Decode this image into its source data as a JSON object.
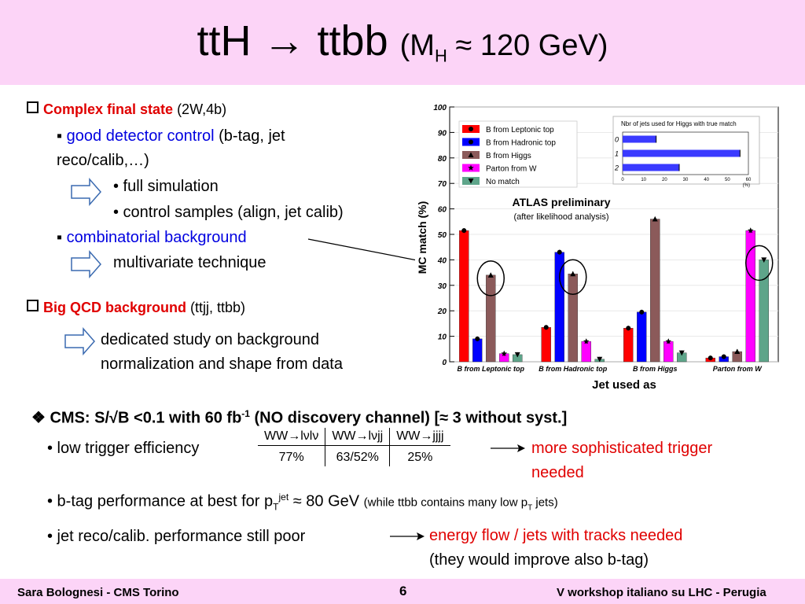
{
  "slide": {
    "title_main": "ttH → ttbb",
    "title_paren_open": "(M",
    "title_sub": "H",
    "title_paren_rest": " ≈ 120 GeV)"
  },
  "left": {
    "complex_head": "Complex final state",
    "complex_tail": "(2W,4b)",
    "good_detector": "good detector control",
    "good_detector_tail": "(b-tag, jet",
    "good_detector_line2": "reco/calib,…)",
    "full_sim": "• full simulation",
    "control_samples": "• control samples (align, jet calib)",
    "combinatorial": "combinatorial background",
    "multivariate": "multivariate technique",
    "qcd_head": "Big QCD background",
    "qcd_tail": "(ttjj, ttbb)",
    "dedicated_1": "dedicated study on background",
    "dedicated_2": "normalization and shape from data",
    "square_bullet": "▪"
  },
  "cms": {
    "line_a": "❖ CMS: S/√B <0.1 with 60 fb",
    "line_sup": "-1",
    "line_b": " (NO discovery channel) [≈ 3 without syst.]",
    "low_trigger": "• low trigger efficiency",
    "table_headers": [
      "WW→lνlν",
      "WW→lνjj",
      "WW→jjjj"
    ],
    "table_values": [
      "77%",
      "63/52%",
      "25%"
    ],
    "trigger_note_1": "more sophisticated trigger",
    "trigger_note_2": "needed",
    "btag_a": "• b-tag performance at best for p",
    "btag_sub": "T",
    "btag_sup": "jet",
    "btag_b": " ≈ 80 GeV ",
    "btag_small_a": "(while ttbb contains many low p",
    "btag_small_sub": "T",
    "btag_small_b": " jets)",
    "jet_reco": "• jet reco/calib. performance still poor",
    "energy_flow": "energy flow / jets with tracks needed",
    "would_improve": "(they would improve also b-tag)"
  },
  "footer": {
    "author": "Sara Bolognesi - CMS Torino",
    "page": "6",
    "event": "V workshop italiano su LHC - Perugia"
  },
  "chart_data": {
    "type": "bar",
    "ylabel": "MC match (%)",
    "xlabel": "Jet used as",
    "ylim": [
      0,
      100
    ],
    "yticks": [
      0,
      10,
      20,
      30,
      40,
      50,
      60,
      70,
      80,
      90,
      100
    ],
    "categories": [
      "B from Leptonic top",
      "B from Hadronic top",
      "B from Higgs",
      "Parton from W"
    ],
    "series": [
      {
        "name": "B from Leptonic top",
        "color": "#ff0000",
        "values": [
          51.5,
          13.5,
          13.2,
          1.5
        ]
      },
      {
        "name": "B from Hadronic top",
        "color": "#0000ff",
        "values": [
          9,
          43,
          19.5,
          2
        ]
      },
      {
        "name": "B from Higgs",
        "color": "#8b5a5a",
        "values": [
          34,
          34.5,
          56,
          4
        ]
      },
      {
        "name": "Parton from W",
        "color": "#ff00ff",
        "values": [
          3.2,
          8,
          8,
          51.5
        ]
      },
      {
        "name": "No match",
        "color": "#5ea58a",
        "values": [
          2.8,
          1,
          3.5,
          40
        ]
      }
    ],
    "annotation_title": "ATLAS preliminary",
    "annotation_sub": "(after likelihood analysis)",
    "inset": {
      "title": "Nbr of jets used for Higgs with true match",
      "categories": [
        "0",
        "1",
        "2"
      ],
      "values": [
        16,
        56,
        27
      ],
      "xticks": [
        0,
        10,
        20,
        30,
        40,
        50,
        60
      ],
      "xunit": "(%)",
      "color": "#3a3aff"
    }
  }
}
